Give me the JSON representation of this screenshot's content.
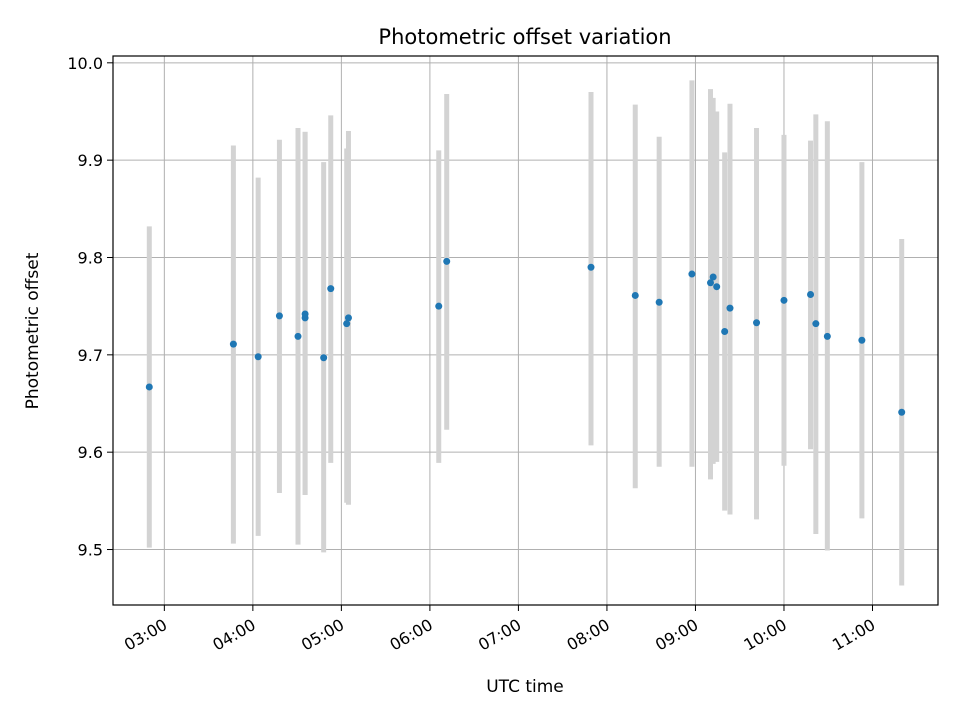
{
  "chart_data": {
    "type": "scatter",
    "title": "Photometric offset variation",
    "xlabel": "UTC time",
    "ylabel": "Photometric offset",
    "x_unit": "hours UTC",
    "xlim": [
      2.42,
      11.74
    ],
    "ylim": [
      9.443,
      10.007
    ],
    "x_ticks": [
      {
        "value": 3,
        "label": "03:00"
      },
      {
        "value": 4,
        "label": "04:00"
      },
      {
        "value": 5,
        "label": "05:00"
      },
      {
        "value": 6,
        "label": "06:00"
      },
      {
        "value": 7,
        "label": "07:00"
      },
      {
        "value": 8,
        "label": "08:00"
      },
      {
        "value": 9,
        "label": "09:00"
      },
      {
        "value": 10,
        "label": "10:00"
      },
      {
        "value": 11,
        "label": "11:00"
      }
    ],
    "y_ticks": [
      {
        "value": 9.5,
        "label": "9.5"
      },
      {
        "value": 9.6,
        "label": "9.6"
      },
      {
        "value": 9.7,
        "label": "9.7"
      },
      {
        "value": 9.8,
        "label": "9.8"
      },
      {
        "value": 9.9,
        "label": "9.9"
      },
      {
        "value": 10.0,
        "label": "10.0"
      }
    ],
    "grid": true,
    "legend": "none",
    "marker_color": "#1f77b4",
    "errorbar_color": "#d3d3d3",
    "points": [
      {
        "x": 2.83,
        "y": 9.667,
        "low": 9.502,
        "high": 9.832
      },
      {
        "x": 3.78,
        "y": 9.711,
        "low": 9.506,
        "high": 9.915
      },
      {
        "x": 4.06,
        "y": 9.698,
        "low": 9.514,
        "high": 9.882
      },
      {
        "x": 4.3,
        "y": 9.74,
        "low": 9.558,
        "high": 9.921
      },
      {
        "x": 4.51,
        "y": 9.719,
        "low": 9.505,
        "high": 9.933
      },
      {
        "x": 4.59,
        "y": 9.738,
        "low": 9.556,
        "high": 9.929
      },
      {
        "x": 4.59,
        "y": 9.742,
        "low": 9.556,
        "high": 9.929
      },
      {
        "x": 4.8,
        "y": 9.697,
        "low": 9.497,
        "high": 9.898
      },
      {
        "x": 4.88,
        "y": 9.768,
        "low": 9.589,
        "high": 9.946
      },
      {
        "x": 5.06,
        "y": 9.732,
        "low": 9.548,
        "high": 9.912
      },
      {
        "x": 5.08,
        "y": 9.738,
        "low": 9.546,
        "high": 9.93
      },
      {
        "x": 6.1,
        "y": 9.75,
        "low": 9.589,
        "high": 9.91
      },
      {
        "x": 6.19,
        "y": 9.796,
        "low": 9.623,
        "high": 9.968
      },
      {
        "x": 7.82,
        "y": 9.79,
        "low": 9.607,
        "high": 9.97
      },
      {
        "x": 8.32,
        "y": 9.761,
        "low": 9.563,
        "high": 9.957
      },
      {
        "x": 8.59,
        "y": 9.754,
        "low": 9.585,
        "high": 9.924
      },
      {
        "x": 8.96,
        "y": 9.783,
        "low": 9.585,
        "high": 9.982
      },
      {
        "x": 9.17,
        "y": 9.774,
        "low": 9.572,
        "high": 9.973
      },
      {
        "x": 9.2,
        "y": 9.78,
        "low": 9.588,
        "high": 9.964
      },
      {
        "x": 9.24,
        "y": 9.77,
        "low": 9.59,
        "high": 9.95
      },
      {
        "x": 9.33,
        "y": 9.724,
        "low": 9.54,
        "high": 9.908
      },
      {
        "x": 9.39,
        "y": 9.748,
        "low": 9.536,
        "high": 9.958
      },
      {
        "x": 9.69,
        "y": 9.733,
        "low": 9.531,
        "high": 9.933
      },
      {
        "x": 10.0,
        "y": 9.756,
        "low": 9.586,
        "high": 9.926
      },
      {
        "x": 10.3,
        "y": 9.762,
        "low": 9.603,
        "high": 9.92
      },
      {
        "x": 10.36,
        "y": 9.732,
        "low": 9.516,
        "high": 9.947
      },
      {
        "x": 10.49,
        "y": 9.719,
        "low": 9.499,
        "high": 9.94
      },
      {
        "x": 10.88,
        "y": 9.715,
        "low": 9.532,
        "high": 9.898
      },
      {
        "x": 11.33,
        "y": 9.641,
        "low": 9.463,
        "high": 9.819
      }
    ]
  }
}
